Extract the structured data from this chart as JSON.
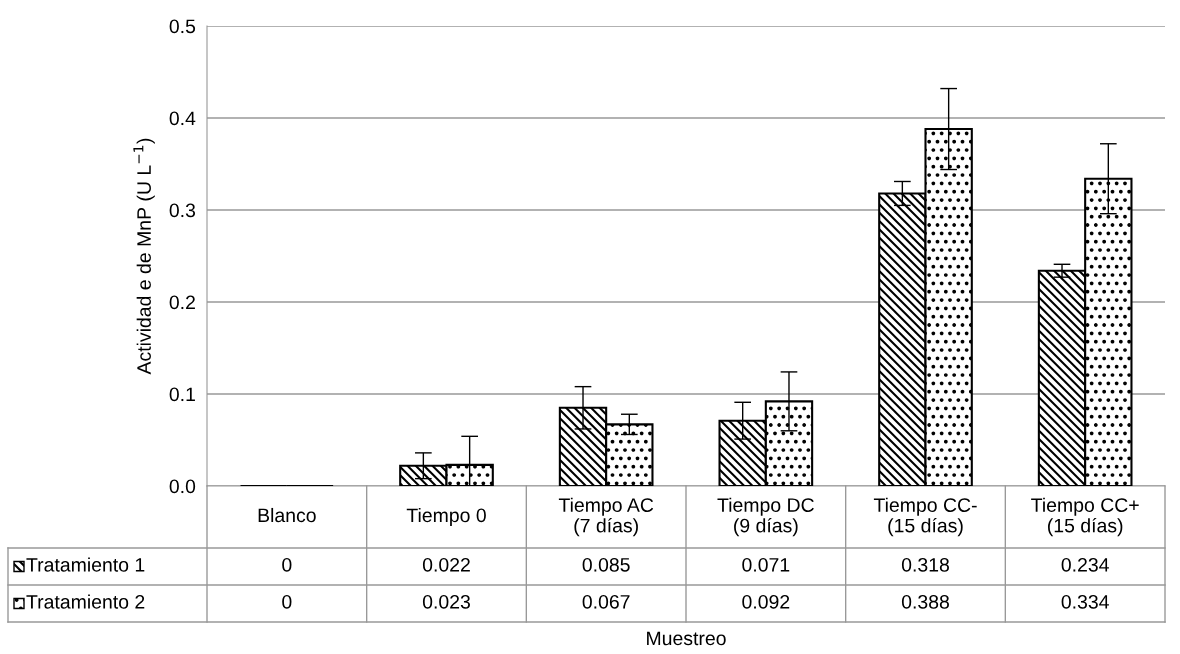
{
  "chart_data": {
    "type": "bar",
    "categories": [
      "Blanco",
      "Tiempo 0",
      "Tiempo AC\n(7 días)",
      "Tiempo DC\n(9 días)",
      "Tiempo CC-\n(15 días)",
      "Tiempo CC+\n(15 días)"
    ],
    "series": [
      {
        "name": "Tratamiento 1",
        "color": "#000000",
        "values": [
          0,
          0.022,
          0.085,
          0.071,
          0.318,
          0.234
        ],
        "errors": [
          null,
          0.014,
          0.023,
          0.02,
          0.013,
          0.007
        ]
      },
      {
        "name": "Tratamiento 2",
        "color": "#000000",
        "values": [
          0,
          0.023,
          0.067,
          0.092,
          0.388,
          0.334
        ],
        "errors": [
          null,
          0.031,
          0.011,
          0.032,
          0.044,
          0.038
        ]
      }
    ],
    "xlabel": "Muestreo",
    "ylabel": "Actividad e de MnP (U L$^{−1}$)",
    "ylim": [
      0,
      0.5
    ],
    "yticks": [
      {
        "value": 0,
        "label": "0.0"
      },
      {
        "value": 0.1,
        "label": "0.1"
      },
      {
        "value": 0.2,
        "label": "0.2"
      },
      {
        "value": 0.3,
        "label": "0.3"
      },
      {
        "value": 0.4,
        "label": "0.4"
      },
      {
        "value": 0.5,
        "label": "0.5"
      }
    ],
    "grid": "y",
    "data_labels": true,
    "legend": "bottom left"
  }
}
